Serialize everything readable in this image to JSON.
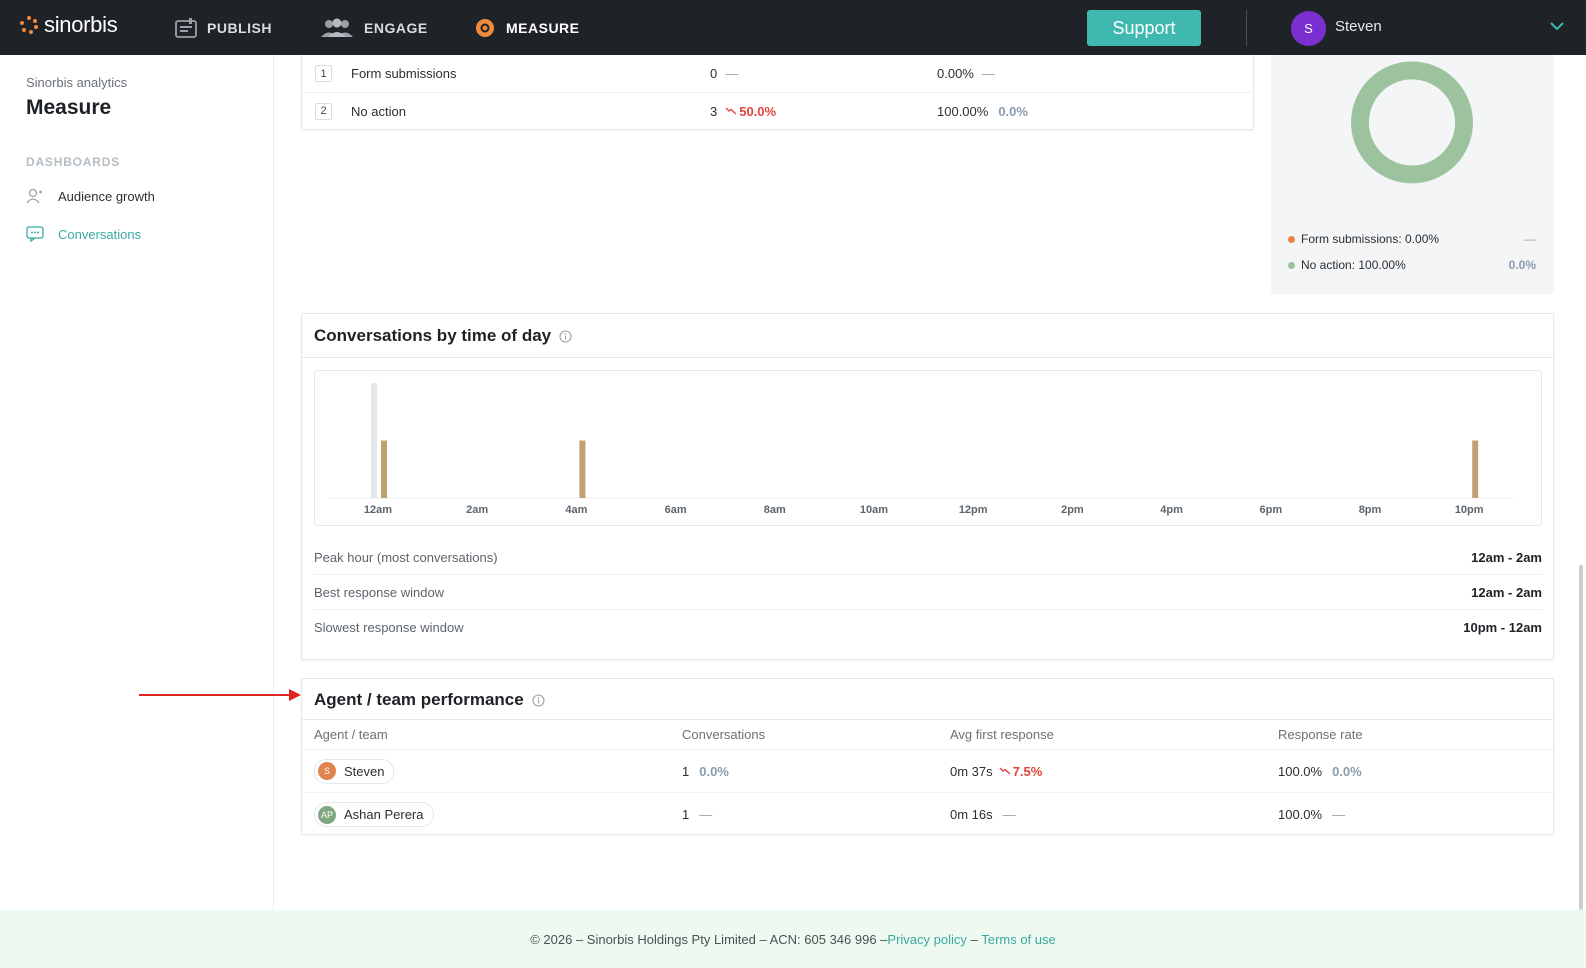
{
  "nav": {
    "logo": "sinorbis",
    "items": [
      {
        "label": "PUBLISH",
        "icon": "publish-icon"
      },
      {
        "label": "ENGAGE",
        "icon": "engage-icon"
      },
      {
        "label": "MEASURE",
        "icon": "measure-icon",
        "active": true
      }
    ],
    "support_label": "Support",
    "user": {
      "initial": "S",
      "name": "Steven",
      "avatar_color": "#7b2fd0"
    }
  },
  "sidebar": {
    "subtitle": "Sinorbis analytics",
    "title": "Measure",
    "section_label": "DASHBOARDS",
    "items": [
      {
        "label": "Audience growth",
        "icon": "audience-icon"
      },
      {
        "label": "Conversations",
        "icon": "conversation-icon",
        "active": true
      }
    ]
  },
  "actions_table": {
    "rows": [
      {
        "rank": "1",
        "name": "Form submissions",
        "count": "0",
        "count_change": "—",
        "share": "0.00%",
        "share_change": "—"
      },
      {
        "rank": "2",
        "name": "No action",
        "count": "3",
        "count_change": "50.0%",
        "share": "100.00%",
        "share_change": "0.0%"
      }
    ]
  },
  "donut": {
    "colors": {
      "form": "#e8834a",
      "no_action": "#9cc29e"
    },
    "legend": [
      {
        "label": "Form submissions: 0.00%",
        "value": "—"
      },
      {
        "label": "No action: 100.00%",
        "value": "0.0%"
      }
    ]
  },
  "time_of_day": {
    "title": "Conversations by time of day",
    "stats": [
      {
        "label": "Peak hour (most conversations)",
        "value": "12am - 2am"
      },
      {
        "label": "Best response window",
        "value": "12am - 2am"
      },
      {
        "label": "Slowest response window",
        "value": "10pm - 12am"
      }
    ]
  },
  "chart_data": {
    "type": "bar",
    "categories": [
      "12am",
      "2am",
      "4am",
      "6am",
      "8am",
      "10am",
      "12pm",
      "2pm",
      "4pm",
      "6pm",
      "8pm",
      "10pm"
    ],
    "series": [
      {
        "values": [
          2,
          0,
          0,
          0,
          0,
          0,
          0,
          0,
          0,
          0,
          0,
          0
        ],
        "color": "#e6e7ea"
      },
      {
        "values": [
          1,
          0,
          1,
          0,
          0,
          0,
          0,
          0,
          0,
          0,
          0,
          1
        ],
        "color": "#bfa172"
      }
    ],
    "ylim": [
      0,
      2
    ],
    "grid": false,
    "legend": "none"
  },
  "agent_table": {
    "title": "Agent / team performance",
    "headers": [
      "Agent / team",
      "Conversations",
      "Avg first response",
      "Response rate"
    ],
    "rows": [
      {
        "initials": "S",
        "avatar_color": "#e0844f",
        "name": "Steven",
        "conversations": "1",
        "conversations_change": "0.0%",
        "first_response": "0m 37s",
        "first_response_change": "7.5%",
        "response_rate": "100.0%",
        "response_rate_change": "0.0%"
      },
      {
        "initials": "AP",
        "avatar_color": "#7fa882",
        "name": "Ashan Perera",
        "conversations": "1",
        "conversations_change": "—",
        "first_response": "0m 16s",
        "first_response_change": "—",
        "response_rate": "100.0%",
        "response_rate_change": "—"
      }
    ]
  },
  "footer": {
    "text": "© 2026 – Sinorbis Holdings Pty Limited – ACN: 605 346 996 – ",
    "privacy": "Privacy policy",
    "sep": " – ",
    "terms": "Terms of use"
  }
}
